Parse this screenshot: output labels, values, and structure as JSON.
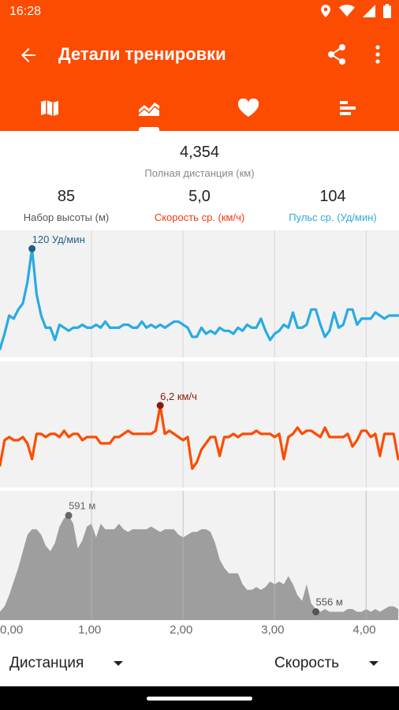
{
  "status": {
    "time": "16:28"
  },
  "app_bar": {
    "title": "Детали тренировки"
  },
  "tabs": [
    "map-icon",
    "chart-icon",
    "heart-icon",
    "splits-icon"
  ],
  "summary": {
    "distance": {
      "value": "4,354",
      "label": "Полная дистанция (км)"
    },
    "elevation": {
      "value": "85",
      "label": "Набор высоты (м)"
    },
    "speed": {
      "value": "5,0",
      "label": "Скорость ср. (км/ч)",
      "color": "#f2380f"
    },
    "pulse": {
      "value": "104",
      "label": "Пульс ср. (Уд/мин)",
      "color": "#2eaadc"
    }
  },
  "colors": {
    "accent": "#fc4c02",
    "pulse": "#29abe2",
    "speed": "#fc4c02",
    "elevation_fill": "#9e9e9e",
    "chart_bg": "#f2f2f2"
  },
  "chart_data": [
    {
      "type": "line",
      "name": "pulse",
      "x": [
        0,
        0.05,
        0.1,
        0.15,
        0.2,
        0.25,
        0.3,
        0.35,
        0.4,
        0.45,
        0.5,
        0.55,
        0.6,
        0.65,
        0.7,
        0.75,
        0.8,
        0.85,
        0.9,
        0.95,
        1.0,
        1.05,
        1.1,
        1.15,
        1.2,
        1.25,
        1.3,
        1.35,
        1.4,
        1.45,
        1.5,
        1.55,
        1.6,
        1.65,
        1.7,
        1.75,
        1.8,
        1.85,
        1.9,
        1.95,
        2.0,
        2.05,
        2.1,
        2.15,
        2.2,
        2.25,
        2.3,
        2.35,
        2.4,
        2.45,
        2.5,
        2.55,
        2.6,
        2.65,
        2.7,
        2.75,
        2.8,
        2.85,
        2.9,
        2.95,
        3.0,
        3.05,
        3.1,
        3.15,
        3.2,
        3.25,
        3.3,
        3.35,
        3.4,
        3.45,
        3.5,
        3.55,
        3.6,
        3.65,
        3.7,
        3.75,
        3.8,
        3.85,
        3.9,
        3.95,
        4.0,
        4.05,
        4.1,
        4.15,
        4.2,
        4.25,
        4.3,
        4.35
      ],
      "y": [
        87,
        92,
        98,
        97,
        100,
        102,
        109,
        120,
        105,
        98,
        94,
        94,
        90,
        95,
        94,
        93,
        94,
        94,
        95,
        94,
        94,
        95,
        94,
        96,
        94,
        94,
        94,
        95,
        95,
        94,
        94,
        96,
        94,
        95,
        94,
        95,
        94,
        95,
        96,
        96,
        95,
        94,
        91,
        91,
        94,
        92,
        93,
        92,
        94,
        93,
        93,
        92,
        94,
        93,
        95,
        94,
        94,
        97,
        93,
        90,
        92,
        93,
        95,
        94,
        99,
        94,
        94,
        95,
        100,
        100,
        95,
        91,
        93,
        99,
        94,
        95,
        100,
        100,
        95,
        97,
        97,
        97,
        99,
        98,
        97,
        98,
        98,
        98
      ],
      "peak_label": "120 Уд/мин",
      "peak_x": 0.35,
      "peak_y": 120,
      "ylim": [
        84,
        126
      ]
    },
    {
      "type": "line",
      "name": "speed",
      "x": [
        0,
        0.05,
        0.1,
        0.15,
        0.2,
        0.25,
        0.3,
        0.35,
        0.4,
        0.45,
        0.5,
        0.55,
        0.6,
        0.65,
        0.7,
        0.75,
        0.8,
        0.85,
        0.9,
        0.95,
        1.0,
        1.05,
        1.1,
        1.15,
        1.2,
        1.25,
        1.3,
        1.35,
        1.4,
        1.45,
        1.5,
        1.55,
        1.6,
        1.65,
        1.7,
        1.75,
        1.8,
        1.85,
        1.9,
        1.95,
        2.0,
        2.05,
        2.1,
        2.15,
        2.2,
        2.25,
        2.3,
        2.35,
        2.4,
        2.45,
        2.5,
        2.55,
        2.6,
        2.65,
        2.7,
        2.75,
        2.8,
        2.85,
        2.9,
        2.95,
        3.0,
        3.05,
        3.1,
        3.15,
        3.2,
        3.25,
        3.3,
        3.35,
        3.4,
        3.45,
        3.5,
        3.55,
        3.6,
        3.65,
        3.7,
        3.75,
        3.8,
        3.85,
        3.9,
        3.95,
        4.0,
        4.05,
        4.1,
        4.15,
        4.2,
        4.25,
        4.3,
        4.35
      ],
      "y": [
        4.3,
        5.1,
        5.2,
        5.1,
        5.1,
        5.2,
        5.0,
        4.5,
        5.3,
        5.3,
        5.2,
        5.3,
        5.3,
        5.2,
        5.4,
        5.2,
        5.3,
        5.3,
        5.1,
        5.2,
        5.2,
        5.2,
        5.0,
        5.0,
        5.0,
        5.2,
        5.2,
        5.3,
        5.4,
        5.3,
        5.3,
        5.3,
        5.3,
        5.3,
        5.4,
        6.2,
        5.3,
        5.4,
        5.3,
        5.2,
        5.1,
        5.2,
        4.2,
        4.4,
        4.8,
        5.0,
        5.2,
        5.2,
        4.6,
        5.2,
        5.2,
        5.3,
        5.2,
        5.3,
        5.3,
        5.3,
        5.4,
        5.3,
        5.3,
        5.3,
        5.2,
        5.3,
        4.5,
        5.2,
        5.3,
        5.5,
        5.3,
        5.4,
        5.4,
        5.3,
        5.2,
        5.5,
        5.2,
        5.2,
        5.2,
        5.2,
        5.3,
        4.9,
        5.1,
        5.4,
        5.4,
        5.2,
        5.3,
        4.6,
        5.3,
        5.3,
        5.3,
        4.5
      ],
      "peak_label": "6,2 км/ч",
      "peak_x": 1.75,
      "peak_y": 6.2,
      "ylim": [
        3.6,
        7.6
      ]
    },
    {
      "type": "area",
      "name": "elevation",
      "x": [
        0,
        0.05,
        0.1,
        0.15,
        0.2,
        0.25,
        0.3,
        0.35,
        0.4,
        0.45,
        0.5,
        0.55,
        0.6,
        0.65,
        0.7,
        0.75,
        0.8,
        0.85,
        0.9,
        0.95,
        1.0,
        1.05,
        1.1,
        1.15,
        1.2,
        1.25,
        1.3,
        1.35,
        1.4,
        1.45,
        1.5,
        1.55,
        1.6,
        1.65,
        1.7,
        1.75,
        1.8,
        1.85,
        1.9,
        1.95,
        2.0,
        2.05,
        2.1,
        2.15,
        2.2,
        2.25,
        2.3,
        2.35,
        2.4,
        2.45,
        2.5,
        2.55,
        2.6,
        2.65,
        2.7,
        2.75,
        2.8,
        2.85,
        2.9,
        2.95,
        3.0,
        3.05,
        3.1,
        3.15,
        3.2,
        3.25,
        3.3,
        3.35,
        3.4,
        3.45,
        3.5,
        3.55,
        3.6,
        3.65,
        3.7,
        3.75,
        3.8,
        3.85,
        3.9,
        3.95,
        4.0,
        4.05,
        4.1,
        4.15,
        4.2,
        4.25,
        4.3,
        4.35
      ],
      "y": [
        556,
        558,
        562,
        567,
        572,
        578,
        584,
        586,
        586,
        584,
        580,
        578,
        581,
        587,
        590,
        591,
        588,
        579,
        582,
        587,
        588,
        583,
        588,
        586,
        586,
        586,
        588,
        586,
        585,
        586,
        586,
        586,
        586,
        587,
        586,
        585,
        586,
        586,
        586,
        584,
        583,
        584,
        585,
        585,
        586,
        586,
        585,
        581,
        575,
        572,
        570,
        570,
        570,
        566,
        564,
        564,
        565,
        564,
        565,
        567,
        566,
        567,
        566,
        569,
        566,
        562,
        560,
        566,
        559,
        557,
        556,
        557,
        556,
        556,
        556,
        556,
        557,
        557,
        556,
        556,
        557,
        556,
        557,
        556,
        557,
        558,
        558,
        557
      ],
      "peak_label": "591 м",
      "peak_x": 0.75,
      "peak_y": 591,
      "low_label": "556 м",
      "low_x": 3.45,
      "low_y": 556,
      "ylim": [
        553,
        600
      ]
    }
  ],
  "x_axis": {
    "ticks": [
      "0,00",
      "1,00",
      "2,00",
      "3,00",
      "4,00"
    ]
  },
  "bottom": {
    "left_selector": "Дистанция",
    "right_selector": "Скорость"
  }
}
